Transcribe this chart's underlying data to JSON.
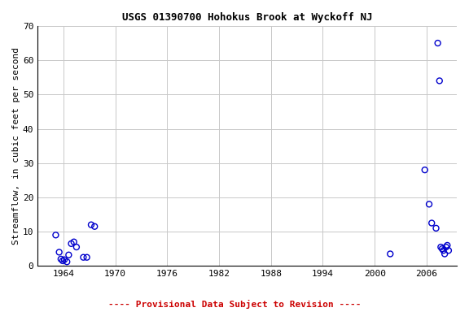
{
  "title": "USGS 01390700 Hohokus Brook at Wyckoff NJ",
  "ylabel": "Streamflow, in cubic feet per second",
  "xlabel_ticks": [
    1964,
    1970,
    1976,
    1982,
    1988,
    1994,
    2000,
    2006
  ],
  "xlim": [
    1961.0,
    2009.5
  ],
  "ylim": [
    0,
    70
  ],
  "yticks": [
    0,
    10,
    20,
    30,
    40,
    50,
    60,
    70
  ],
  "footnote": "---- Provisional Data Subject to Revision ----",
  "footnote_color": "#cc0000",
  "background_color": "#ffffff",
  "plot_bg_color": "#ffffff",
  "grid_color": "#c8c8c8",
  "marker_color": "#0000cc",
  "data_x": [
    1963.1,
    1963.5,
    1963.7,
    1963.9,
    1964.1,
    1964.4,
    1964.6,
    1964.9,
    1965.2,
    1965.5,
    1966.3,
    1966.7,
    1967.2,
    1967.6,
    2001.8,
    2005.8,
    2006.3,
    2006.6,
    2007.1,
    2007.3,
    2007.5,
    2007.65,
    2007.8,
    2007.95,
    2008.1,
    2008.25,
    2008.4,
    2008.55
  ],
  "data_y": [
    9.0,
    4.0,
    2.0,
    1.5,
    1.8,
    1.2,
    3.2,
    6.5,
    7.0,
    5.5,
    2.5,
    2.5,
    12.0,
    11.5,
    3.5,
    28.0,
    18.0,
    12.5,
    11.0,
    65.0,
    54.0,
    5.5,
    5.0,
    4.5,
    3.5,
    5.5,
    6.0,
    4.5
  ],
  "title_fontsize": 9,
  "label_fontsize": 8,
  "tick_fontsize": 8,
  "footnote_fontsize": 8,
  "marker_size": 25,
  "marker_lw": 1.0
}
